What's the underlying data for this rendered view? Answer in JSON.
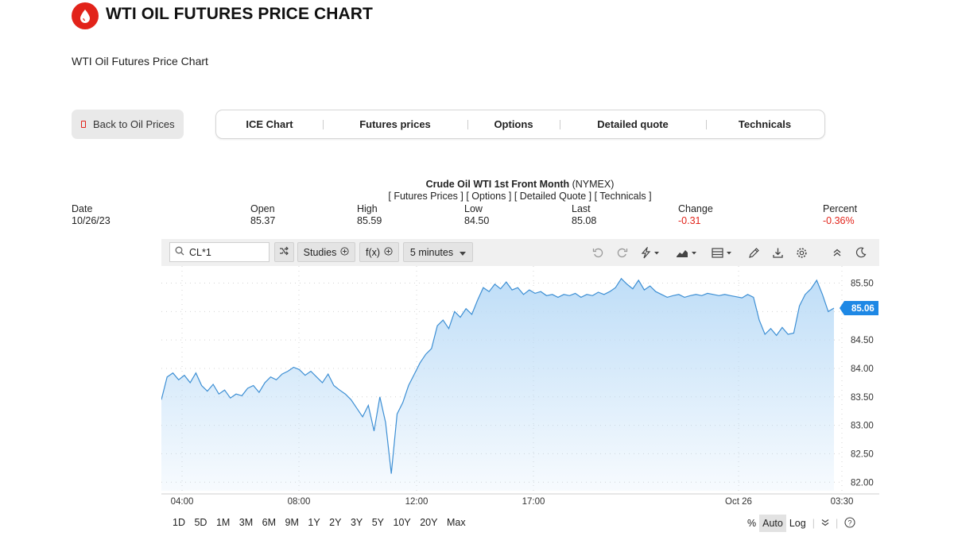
{
  "header": {
    "title": "WTI OIL FUTURES PRICE CHART",
    "subtitle": "WTI Oil Futures Price Chart",
    "logo_icon": "oil-drop-icon",
    "accent_color": "#e2231a"
  },
  "back_button": {
    "label": "Back to Oil Prices",
    "icon": "square-icon"
  },
  "tabs": [
    {
      "label": "ICE Chart"
    },
    {
      "label": "Futures prices"
    },
    {
      "label": "Options"
    },
    {
      "label": "Detailed quote"
    },
    {
      "label": "Technicals"
    }
  ],
  "quote": {
    "title_bold": "Crude Oil WTI 1st Front Month",
    "title_suffix": " (NYMEX)",
    "links": [
      "[ Futures Prices ]",
      "[ Options ]",
      "[ Detailed Quote ]",
      "[ Technicals ]"
    ],
    "columns": [
      {
        "label": "Date",
        "value": "10/26/23"
      },
      {
        "label": "Open",
        "value": "85.37"
      },
      {
        "label": "High",
        "value": "85.59"
      },
      {
        "label": "Low",
        "value": "84.50"
      },
      {
        "label": "Last",
        "value": "85.08"
      },
      {
        "label": "Change",
        "value": "-0.31"
      },
      {
        "label": "Percent",
        "value": "-0.36%"
      }
    ]
  },
  "toolbar": {
    "symbol": "CL*1",
    "studies_label": "Studies",
    "fx_label": "f(x)",
    "interval_label": "5 minutes",
    "icons": [
      "undo-icon",
      "redo-icon",
      "lightning-icon",
      "chart-type-icon",
      "layout-icon",
      "pencil-icon",
      "download-icon",
      "gear-icon",
      "collapse-icon",
      "dark-mode-icon"
    ]
  },
  "chart_data": {
    "type": "area",
    "title": "",
    "xlabel": "",
    "ylabel": "",
    "ylim": [
      81.85,
      85.8
    ],
    "y_ticks": [
      "85.50",
      "85.00",
      "84.50",
      "84.00",
      "83.50",
      "83.00",
      "82.50",
      "82.00"
    ],
    "x_ticks": [
      "04:00",
      "08:00",
      "12:00",
      "17:00",
      "Oct 26",
      "03:30"
    ],
    "last_value_label": "85.06",
    "line_color": "#3d8fd4",
    "fill_color": "#cfe5fa",
    "grid": true,
    "series": [
      {
        "values": [
          83.45,
          83.85,
          83.92,
          83.8,
          83.88,
          83.75,
          83.92,
          83.7,
          83.6,
          83.72,
          83.55,
          83.62,
          83.48,
          83.55,
          83.52,
          83.65,
          83.7,
          83.58,
          83.75,
          83.85,
          83.8,
          83.9,
          83.95,
          84.02,
          83.98,
          83.88,
          83.95,
          83.85,
          83.75,
          83.9,
          83.7,
          83.62,
          83.55,
          83.45,
          83.3,
          83.15,
          83.35,
          82.9,
          83.5,
          83.05,
          82.15,
          83.2,
          83.4,
          83.7,
          83.9,
          84.1,
          84.25,
          84.35,
          84.75,
          84.85,
          84.7,
          85.0,
          84.9,
          85.05,
          84.95,
          85.2,
          85.42,
          85.35,
          85.48,
          85.4,
          85.52,
          85.38,
          85.42,
          85.3,
          85.38,
          85.32,
          85.35,
          85.28,
          85.3,
          85.25,
          85.3,
          85.28,
          85.32,
          85.25,
          85.3,
          85.28,
          85.34,
          85.3,
          85.35,
          85.42,
          85.58,
          85.48,
          85.4,
          85.55,
          85.38,
          85.45,
          85.35,
          85.3,
          85.25,
          85.28,
          85.3,
          85.25,
          85.28,
          85.3,
          85.28,
          85.32,
          85.3,
          85.28,
          85.3,
          85.28,
          85.26,
          85.24,
          85.3,
          85.25,
          84.85,
          84.6,
          84.7,
          84.58,
          84.72,
          84.6,
          84.62,
          85.1,
          85.3,
          85.4,
          85.55,
          85.3,
          85.0,
          85.06
        ]
      }
    ]
  },
  "range_buttons": [
    "1D",
    "5D",
    "1M",
    "3M",
    "6M",
    "9M",
    "1Y",
    "2Y",
    "3Y",
    "5Y",
    "10Y",
    "20Y",
    "Max"
  ],
  "scale_controls": {
    "percent": "%",
    "auto": "Auto",
    "log": "Log",
    "help": "?"
  }
}
